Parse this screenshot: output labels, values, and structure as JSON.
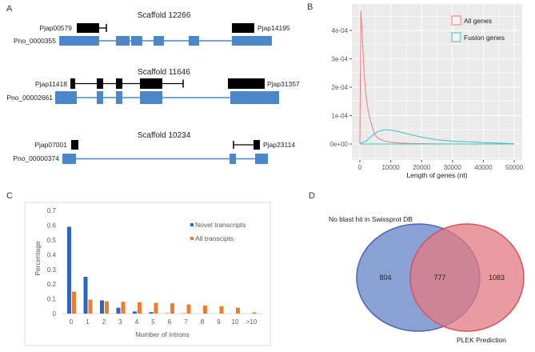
{
  "panels": {
    "a": "A",
    "b": "B",
    "c": "C",
    "d": "D"
  },
  "gene_structures": [
    {
      "scaffold": "Scaffold 12266",
      "left_gene": "Pjap00579",
      "right_gene": "Pjap14195",
      "transcript": "Pno_0000355"
    },
    {
      "scaffold": "Scaffold 11646",
      "left_gene": "Pjap11418",
      "right_gene": "Pjap31357",
      "transcript": "Pno_00002661"
    },
    {
      "scaffold": "Scaffold 10234",
      "left_gene": "Pjap07001",
      "right_gene": "Pjap23114",
      "transcript": "Pno_00000374"
    }
  ],
  "colors": {
    "exon": "#4a86c8",
    "pjap": "#000000",
    "all_genes": "#f07a7a",
    "fusion_genes": "#3fc1c0",
    "novel": "#2f64c0",
    "all_transcripts": "#ef7b2c",
    "venn_left": "#6d8bc8",
    "venn_right": "#e27a82",
    "panel_bg": "#ebebeb"
  },
  "chart_data": [
    {
      "type": "line",
      "xlabel": "Length of genes (nt)",
      "ylabel": "",
      "xlim": [
        0,
        50000
      ],
      "ylim": [
        0,
        0.00047
      ],
      "x_ticks": [
        "0",
        "10000",
        "20000",
        "30000",
        "40000",
        "50000"
      ],
      "y_ticks": [
        "0e+00",
        "1e-04",
        "2e-04",
        "3e-04",
        "4e-04"
      ],
      "grid": true,
      "legend": "top-right",
      "series": [
        {
          "name": "All genes",
          "x": [
            0,
            300,
            600,
            1000,
            1500,
            2000,
            2500,
            3000,
            4000,
            5000,
            6000,
            8000,
            10000,
            15000,
            20000,
            30000,
            50000
          ],
          "y": [
            5e-06,
            0.00047,
            0.00042,
            0.00033,
            0.00023,
            0.00017,
            0.00013,
            0.0001,
            6e-05,
            3e-05,
            2e-05,
            1e-05,
            6e-06,
            2e-06,
            1e-06,
            0,
            0
          ]
        },
        {
          "name": "Fusion genes",
          "x": [
            0,
            2000,
            4000,
            6000,
            8000,
            9000,
            10000,
            12000,
            15000,
            20000,
            25000,
            30000,
            35000,
            40000,
            45000,
            50000
          ],
          "y": [
            2e-06,
            1e-05,
            3e-05,
            4.5e-05,
            5e-05,
            5e-05,
            4.9e-05,
            4.5e-05,
            3.7e-05,
            2.4e-05,
            1.5e-05,
            1e-05,
            8e-06,
            5e-06,
            3e-06,
            1e-06
          ]
        }
      ]
    },
    {
      "type": "bar",
      "xlabel": "Number of introns",
      "ylabel": "Percentage",
      "ylim": [
        0,
        0.7
      ],
      "y_ticks": [
        "0",
        "0.1",
        "0.2",
        "0.3",
        "0.4",
        "0.5",
        "0.6",
        "0.7"
      ],
      "categories": [
        "0",
        "1",
        "2",
        "3",
        "4",
        "5",
        "6",
        "7",
        "8",
        "9",
        "10",
        ">10"
      ],
      "legend": "top-right",
      "series": [
        {
          "name": "Novel transcripts",
          "values": [
            0.59,
            0.25,
            0.09,
            0.04,
            0.015,
            0.01,
            0.002,
            0.002,
            0,
            0,
            0,
            0
          ]
        },
        {
          "name": "All transcipts",
          "values": [
            0.15,
            0.095,
            0.082,
            0.08,
            0.077,
            0.073,
            0.07,
            0.062,
            0.055,
            0.05,
            0.04,
            0.008
          ]
        }
      ]
    },
    {
      "type": "venn",
      "sets": [
        {
          "name": "No blast hit in Swissprot DB",
          "only": 804
        },
        {
          "name": "PLEK Prediction",
          "only": 1083
        }
      ],
      "intersection": 777
    }
  ]
}
